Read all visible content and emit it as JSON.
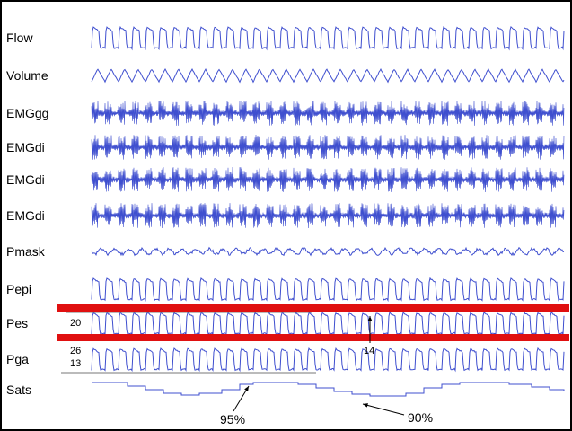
{
  "chart_data": {
    "type": "line",
    "title": "",
    "series": [
      {
        "name": "Flow",
        "kind": "square",
        "period": 15
      },
      {
        "name": "Volume",
        "kind": "saw",
        "period": 15
      },
      {
        "name": "EMGgg",
        "kind": "emg",
        "period": 15
      },
      {
        "name": "EMGdi",
        "kind": "emg",
        "period": 15
      },
      {
        "name": "EMGdi",
        "kind": "emg",
        "period": 15
      },
      {
        "name": "EMGdi",
        "kind": "emg",
        "period": 15
      },
      {
        "name": "Pmask",
        "kind": "noise",
        "period": 15
      },
      {
        "name": "Pepi",
        "kind": "square",
        "period": 15
      },
      {
        "name": "Pes",
        "kind": "square",
        "period": 15
      },
      {
        "name": "Pga",
        "kind": "square",
        "period": 15
      },
      {
        "name": "Sats",
        "kind": "steps",
        "period": 0
      }
    ],
    "scale_labels": [
      {
        "text": "20",
        "channel": "Pes"
      },
      {
        "text": "26",
        "channel": "Pga"
      },
      {
        "text": "13",
        "channel": "Pga"
      }
    ],
    "annotations": [
      {
        "text": "14",
        "channel": "Pes",
        "type": "arrow-up"
      },
      {
        "text": "95%",
        "channel": "Sats",
        "type": "arrow"
      },
      {
        "text": "90%",
        "channel": "Sats",
        "type": "arrow"
      }
    ],
    "highlight_color": "#e01010",
    "trace_color": "#3f4fcf"
  }
}
